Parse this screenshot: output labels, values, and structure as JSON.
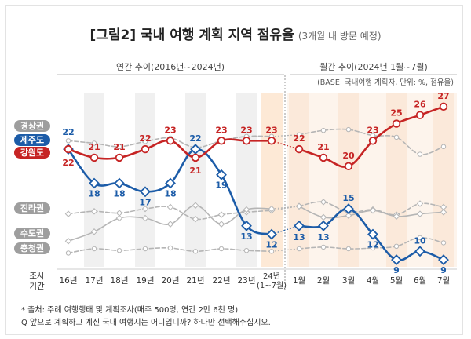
{
  "title": "[그림2] 국내 여행 계획 지역 점유율",
  "subtitle": "(3개월 내 방문 예정)",
  "chart_data": {
    "type": "line",
    "section_labels": {
      "annual": "연간 추이(2016년~2024년)",
      "monthly": "월간 추이(2024년 1월~7월)"
    },
    "base_note": "(BASE: 국내여행 계획자, 단위: %, 점유율)",
    "x_axis_title": "조사\n기간",
    "categories": [
      "16년",
      "17년",
      "18년",
      "19년",
      "20년",
      "21년",
      "22년",
      "23년",
      "24년\n(1~7월)",
      "1월",
      "2월",
      "3월",
      "4월",
      "5월",
      "6월",
      "7월"
    ],
    "series": [
      {
        "name": "경상권",
        "color": "#b5b5b5",
        "dashed": true,
        "labeled": false,
        "values": [
          23,
          22.7,
          22.3,
          22.9,
          23.3,
          22.2,
          23.0,
          23.5,
          23.5,
          23.7,
          24.2,
          24.3,
          23.6,
          23.4,
          21.4,
          22.3
        ]
      },
      {
        "name": "제주도",
        "color": "#1c5ca8",
        "dashed": false,
        "labeled": true,
        "values": [
          22,
          18,
          18,
          17,
          18,
          22,
          19,
          13,
          12,
          13,
          13,
          15,
          12,
          9,
          10,
          9
        ]
      },
      {
        "name": "강원도",
        "color": "#c62424",
        "dashed": false,
        "labeled": true,
        "values": [
          22,
          21,
          21,
          22,
          23,
          21,
          23,
          23,
          23,
          22,
          21,
          20,
          23,
          25,
          26,
          27
        ]
      },
      {
        "name": "진라권",
        "color": "#b5b5b5",
        "dashed": true,
        "labeled": false,
        "values": [
          14.4,
          14.7,
          14.5,
          15.0,
          15.2,
          13.8,
          14.3,
          14.6,
          14.8,
          15.3,
          15.8,
          14.6,
          14.9,
          14.3,
          15.6,
          15.2
        ]
      },
      {
        "name": "수도권",
        "color": "#b5b5b5",
        "dashed": false,
        "labeled": false,
        "values": [
          11.2,
          12.3,
          13.9,
          13.9,
          13.2,
          15.4,
          13.2,
          14.9,
          15.0,
          15.3,
          14.0,
          14.2,
          14.8,
          14.1,
          14.4,
          14.6
        ]
      },
      {
        "name": "충청권",
        "color": "#b5b5b5",
        "dashed": true,
        "labeled": false,
        "values": [
          9.8,
          10.3,
          10.1,
          10.3,
          10.4,
          10.0,
          10.3,
          10.1,
          10.0,
          10.3,
          10.5,
          10.3,
          10.4,
          10.6,
          11.6,
          11.0
        ]
      }
    ],
    "ylim": [
      8,
      28
    ]
  },
  "footnotes": [
    "* 출처: 주례 여행행태 및 계획조사(매주 500명, 연간 2만 6천 명)",
    "Q 앞으로 계획하고 계신 국내 여행지는 어디입니까? 하나만 선택해주십시오."
  ]
}
